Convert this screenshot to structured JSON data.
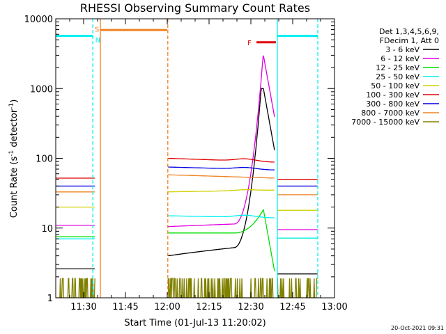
{
  "chart_data": {
    "type": "line",
    "title": "RHESSI Observing Summary Count Rates",
    "xlabel": "Start Time (01-Jul-13 11:20:02)",
    "ylabel_main": "Count Rate (s",
    "ylabel_sup1": "-1",
    "ylabel_mid": " detector",
    "ylabel_sup2": "-1",
    "ylabel_end": ")",
    "yscale": "log",
    "ylim": [
      1,
      10000
    ],
    "xlim_minutes": [
      0,
      100
    ],
    "x_ticks": [
      {
        "label": "11:30",
        "min": 10
      },
      {
        "label": "11:45",
        "min": 25
      },
      {
        "label": "12:00",
        "min": 40
      },
      {
        "label": "12:15",
        "min": 55
      },
      {
        "label": "12:30",
        "min": 70
      },
      {
        "label": "12:45",
        "min": 85
      },
      {
        "label": "13:00",
        "min": 100
      }
    ],
    "y_ticks": [
      {
        "label": "1",
        "value": 1
      },
      {
        "label": "10",
        "value": 10
      },
      {
        "label": "100",
        "value": 100
      },
      {
        "label": "1000",
        "value": 1000
      },
      {
        "label": "10000",
        "value": 10000
      }
    ],
    "legend_header": [
      "Det 1,3,4,5,6,9,",
      "FDecim 1, Att 0"
    ],
    "legend_position": "top-right",
    "series": [
      {
        "name": "3 - 6 keV",
        "color": "#000000",
        "pre": 2.6,
        "post_start": 4.0,
        "post_end": 6.0,
        "peak": 1000,
        "peak_min": 73.7,
        "late": 2.2
      },
      {
        "name": "6 - 12 keV",
        "color": "#e000e0",
        "pre": 11,
        "post_start": 10.5,
        "post_end": 12,
        "peak": 3000,
        "peak_min": 74.4,
        "late": 9.5
      },
      {
        "name": "12 - 25 keV",
        "color": "#00e000",
        "pre": 7.5,
        "post_start": 8.5,
        "post_end": 8.5,
        "peak": 20,
        "peak_min": 75,
        "late": 7.2
      },
      {
        "name": "25 - 50 keV",
        "color": "#00f0f0",
        "pre": 7,
        "post_start": 15,
        "post_end": 14,
        "peak": 15,
        "peak_min": 70,
        "late": 7.2
      },
      {
        "name": "50 - 100 keV",
        "color": "#d0d000",
        "pre": 20,
        "post_start": 33,
        "post_end": 35,
        "peak": 36,
        "peak_min": 70,
        "late": 18
      },
      {
        "name": "100 - 300 keV",
        "color": "#e00000",
        "pre": 52,
        "post_start": 100,
        "post_end": 88,
        "peak": 95,
        "peak_min": 70,
        "late": 50
      },
      {
        "name": "300 - 800 keV",
        "color": "#0000e0",
        "pre": 40,
        "post_start": 75,
        "post_end": 68,
        "peak": 72,
        "peak_min": 70,
        "late": 40
      },
      {
        "name": "800 - 7000 keV",
        "color": "#f08020",
        "pre": 33,
        "post_start": 58,
        "post_end": 52,
        "peak": 52,
        "peak_min": 70,
        "late": 30
      },
      {
        "name": "7000 - 15000 keV",
        "color": "#808000",
        "pre": 1.4,
        "post_start": 1.4,
        "post_end": 1.4,
        "peak": 1.4,
        "peak_min": 70,
        "late": 1.4
      }
    ],
    "gaps_minutes": [
      [
        14.2,
        40.2
      ],
      [
        78.5,
        79.5
      ]
    ],
    "night_bars": [
      {
        "color": "#00f0f0",
        "from": 0,
        "to": 13.3,
        "value": 5700
      },
      {
        "color": "#00f0f0",
        "from": 79.5,
        "to": 94,
        "value": 5700
      }
    ],
    "saa_bar": {
      "color": "#f08020",
      "from": 16,
      "to": 40,
      "value": 6900
    },
    "flare_bar": {
      "color": "#e00000",
      "from": 72,
      "to": 79,
      "value": 4600
    },
    "markers": [
      {
        "label": "S",
        "color": "#f08020",
        "min": 14.8,
        "value": 7200
      },
      {
        "label": "N",
        "color": "#00f0f0",
        "min": 15.1,
        "value": 5000
      },
      {
        "label": "F",
        "color": "#e00000",
        "min": 69.5,
        "value": 4600
      }
    ],
    "vlines": [
      {
        "min": 13.3,
        "color": "#00f0f0",
        "dash": true
      },
      {
        "min": 16.0,
        "color": "#f08020",
        "dash": false
      },
      {
        "min": 40.2,
        "color": "#f08020",
        "dash": true
      },
      {
        "min": 79.5,
        "color": "#00f0f0",
        "dash": false
      },
      {
        "min": 94.0,
        "color": "#00f0f0",
        "dash": true
      }
    ],
    "timestamp": "20-Oct-2021 09:31"
  }
}
